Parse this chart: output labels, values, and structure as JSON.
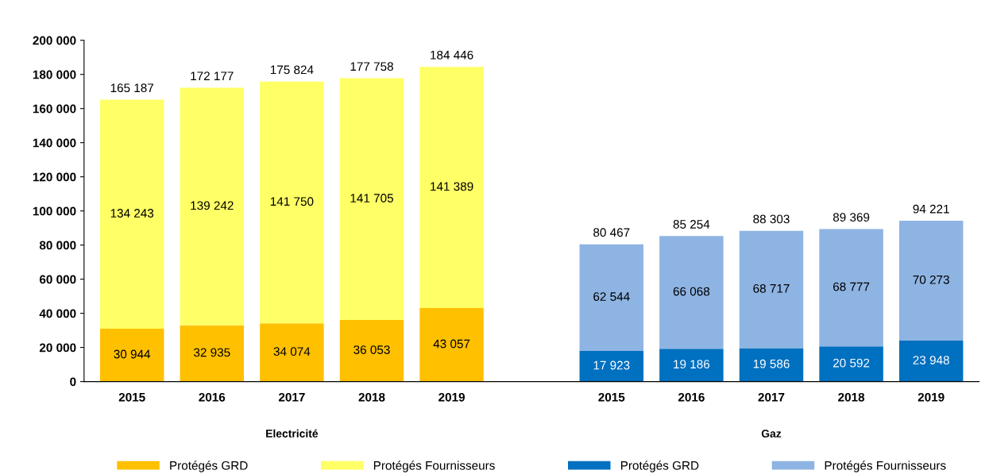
{
  "chart_data": {
    "type": "bar",
    "stacked": true,
    "categories": [
      "2015",
      "2016",
      "2017",
      "2018",
      "2019",
      null,
      "2015",
      "2016",
      "2017",
      "2018",
      "2019"
    ],
    "series": [
      {
        "name": "Protégés GRD",
        "color": "#ffc000",
        "values": [
          30944,
          32935,
          34074,
          36053,
          43057,
          null,
          null,
          null,
          null,
          null,
          null
        ],
        "value_labels": [
          "30 944",
          "32 935",
          "34 074",
          "36 053",
          "43 057",
          null,
          null,
          null,
          null,
          null,
          null
        ]
      },
      {
        "name": "Protégés Fournisseurs",
        "color": "#ffff66",
        "values": [
          134243,
          139242,
          141750,
          141705,
          141389,
          null,
          null,
          null,
          null,
          null,
          null
        ],
        "value_labels": [
          "134 243",
          "139 242",
          "141 750",
          "141 705",
          "141 389",
          null,
          null,
          null,
          null,
          null,
          null
        ]
      },
      {
        "name": "Protégés GRD",
        "color": "#0070c0",
        "values": [
          null,
          null,
          null,
          null,
          null,
          null,
          17923,
          19186,
          19586,
          20592,
          23948
        ],
        "value_labels": [
          null,
          null,
          null,
          null,
          null,
          null,
          "17 923",
          "19 186",
          "19 586",
          "20 592",
          "23 948"
        ]
      },
      {
        "name": "Protégés Fournisseurs",
        "color": "#8eb4e3",
        "values": [
          null,
          null,
          null,
          null,
          null,
          null,
          62544,
          66068,
          68717,
          68777,
          70273
        ],
        "value_labels": [
          null,
          null,
          null,
          null,
          null,
          null,
          "62 544",
          "66 068",
          "68 717",
          "68 777",
          "70 273"
        ]
      }
    ],
    "totals": [
      "165 187",
      "172 177",
      "175 824",
      "177 758",
      "184 446",
      null,
      "80 467",
      "85 254",
      "88 303",
      "89 369",
      "94 221"
    ],
    "ylim": [
      0,
      200000
    ],
    "yticks": [
      {
        "value": 0,
        "label": "0"
      },
      {
        "value": 20000,
        "label": "20 000"
      },
      {
        "value": 40000,
        "label": "40 000"
      },
      {
        "value": 60000,
        "label": "60 000"
      },
      {
        "value": 80000,
        "label": "80 000"
      },
      {
        "value": 100000,
        "label": "100 000"
      },
      {
        "value": 120000,
        "label": "120 000"
      },
      {
        "value": 140000,
        "label": "140 000"
      },
      {
        "value": 160000,
        "label": "160 000"
      },
      {
        "value": 180000,
        "label": "180 000"
      },
      {
        "value": 200000,
        "label": "200 000"
      }
    ],
    "annotations": [
      "Electricité",
      "Gaz"
    ],
    "grid": false,
    "legend": "bottom"
  }
}
